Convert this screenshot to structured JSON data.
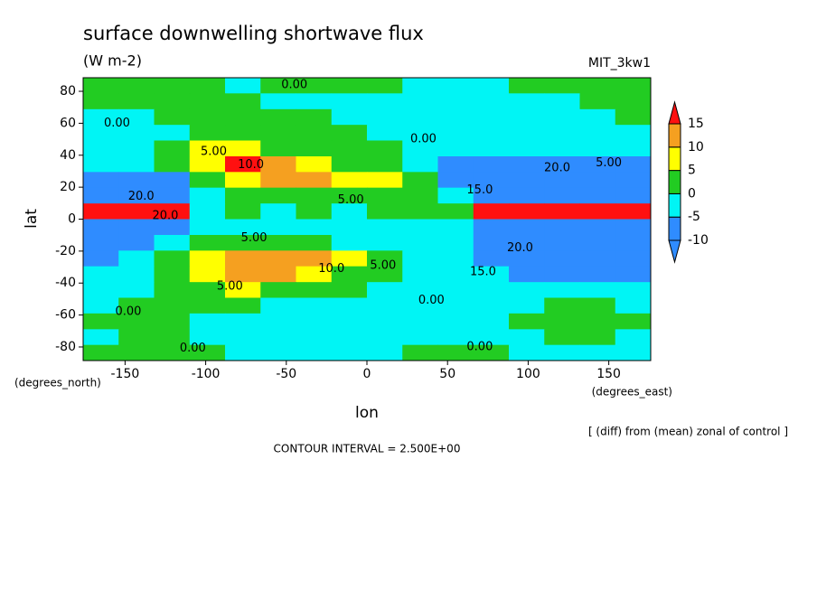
{
  "chart_data": {
    "type": "contourf",
    "title": "surface downwelling shortwave flux",
    "subtitle": "(W m-2)",
    "run_label": "MIT_3kw1",
    "x_label": "lon",
    "y_label": "lat",
    "x_units": "(degrees_east)",
    "y_units": "(degrees_north)",
    "note": "[ (diff) from (mean) zonal of control ]",
    "contour_note": "CONTOUR INTERVAL = 2.500E+00",
    "xlim": [
      -176,
      176
    ],
    "ylim": [
      -88.5,
      88.5
    ],
    "xticks": [
      -150,
      -100,
      -50,
      0,
      50,
      100,
      150
    ],
    "yticks": [
      -80,
      -60,
      -40,
      -20,
      0,
      20,
      40,
      60,
      80
    ],
    "x": [
      -165,
      -143,
      -121,
      -99,
      -77,
      -55,
      -33,
      -11,
      11,
      33,
      55,
      77,
      99,
      121,
      143,
      165
    ],
    "y": [
      83.6,
      73.8,
      63.9,
      54.1,
      44.3,
      34.4,
      24.6,
      14.8,
      4.9,
      -4.9,
      -14.8,
      -24.6,
      -34.4,
      -44.3,
      -54.1,
      -63.9,
      -73.8,
      -83.6
    ],
    "values": [
      [
        2,
        2,
        2,
        2,
        -2,
        2,
        2,
        2,
        2,
        -2,
        -2,
        -2,
        2,
        2,
        2,
        2
      ],
      [
        2,
        2,
        2,
        2,
        2,
        -2,
        -2,
        -2,
        -2,
        -2,
        -2,
        -2,
        -2,
        -2,
        2,
        2
      ],
      [
        -2,
        -2,
        2,
        2,
        2,
        2,
        2,
        -2,
        -2,
        -2,
        -2,
        -2,
        -2,
        -2,
        -2,
        2
      ],
      [
        -2,
        -2,
        -2,
        2,
        2,
        2,
        2,
        2,
        -2,
        -2,
        -2,
        -2,
        -2,
        -2,
        -2,
        -2
      ],
      [
        -2,
        -2,
        2,
        7,
        7,
        2,
        2,
        2,
        2,
        -2,
        -2,
        -2,
        -2,
        -2,
        -2,
        -2
      ],
      [
        -2,
        -2,
        2,
        7,
        20,
        12,
        7,
        2,
        2,
        -2,
        -7,
        -7,
        -7,
        -7,
        -7,
        -7
      ],
      [
        -7,
        -7,
        -7,
        2,
        7,
        12,
        12,
        7,
        7,
        2,
        -7,
        -7,
        -7,
        -7,
        -7,
        -7
      ],
      [
        -7,
        -7,
        -7,
        -2,
        2,
        2,
        2,
        2,
        2,
        2,
        -2,
        -7,
        -7,
        -7,
        -7,
        -7
      ],
      [
        20,
        20,
        20,
        -2,
        2,
        -2,
        2,
        -2,
        2,
        2,
        2,
        20,
        20,
        20,
        20,
        20
      ],
      [
        -7,
        -7,
        -7,
        -2,
        -2,
        -2,
        -2,
        -2,
        -2,
        -2,
        -2,
        -7,
        -7,
        -7,
        -7,
        -7
      ],
      [
        -7,
        -7,
        -2,
        2,
        2,
        2,
        2,
        -2,
        -2,
        -2,
        -2,
        -7,
        -7,
        -7,
        -7,
        -7
      ],
      [
        -7,
        -2,
        2,
        7,
        12,
        12,
        12,
        7,
        2,
        -2,
        -2,
        -7,
        -7,
        -7,
        -7,
        -7
      ],
      [
        -2,
        -2,
        2,
        7,
        12,
        12,
        7,
        2,
        2,
        -2,
        -2,
        -2,
        -7,
        -7,
        -7,
        -7
      ],
      [
        -2,
        -2,
        2,
        2,
        7,
        2,
        2,
        2,
        -2,
        -2,
        -2,
        -2,
        -2,
        -2,
        -2,
        -2
      ],
      [
        -2,
        2,
        2,
        2,
        2,
        -2,
        -2,
        -2,
        -2,
        -2,
        -2,
        -2,
        -2,
        2,
        2,
        -2
      ],
      [
        2,
        2,
        2,
        -2,
        -2,
        -2,
        -2,
        -2,
        -2,
        -2,
        -2,
        -2,
        2,
        2,
        2,
        2
      ],
      [
        -2,
        2,
        2,
        -2,
        -2,
        -2,
        -2,
        -2,
        -2,
        -2,
        -2,
        -2,
        -2,
        2,
        2,
        -2
      ],
      [
        2,
        2,
        2,
        2,
        -2,
        -2,
        -2,
        -2,
        -2,
        2,
        2,
        2,
        -2,
        -2,
        -2,
        -2
      ]
    ],
    "levels": [
      -10,
      -5,
      0,
      5,
      10,
      15
    ],
    "colors": [
      "#2f8cff",
      "#2f8cff",
      "#00f5f5",
      "#22cc22",
      "#ffff00",
      "#f5a020",
      "#ff1010"
    ],
    "annotations": [
      {
        "text": "0.00",
        "x": -45,
        "y": 84
      },
      {
        "text": "0.00",
        "x": -155,
        "y": 60
      },
      {
        "text": "5.00",
        "x": -95,
        "y": 42
      },
      {
        "text": "10.0",
        "x": -72,
        "y": 34
      },
      {
        "text": "0.00",
        "x": 35,
        "y": 50
      },
      {
        "text": "20.0",
        "x": 118,
        "y": 32
      },
      {
        "text": "5.00",
        "x": 150,
        "y": 35
      },
      {
        "text": "20.0",
        "x": -140,
        "y": 14
      },
      {
        "text": "15.0",
        "x": 70,
        "y": 18
      },
      {
        "text": "5.00",
        "x": -10,
        "y": 12
      },
      {
        "text": "20.0",
        "x": -125,
        "y": 2
      },
      {
        "text": "5.00",
        "x": -70,
        "y": -12
      },
      {
        "text": "20.0",
        "x": 95,
        "y": -18
      },
      {
        "text": "10.0",
        "x": -22,
        "y": -31
      },
      {
        "text": "5.00",
        "x": 10,
        "y": -29
      },
      {
        "text": "5.00",
        "x": -85,
        "y": -42
      },
      {
        "text": "15.0",
        "x": 72,
        "y": -33
      },
      {
        "text": "0.00",
        "x": 40,
        "y": -51
      },
      {
        "text": "0.00",
        "x": -148,
        "y": -58
      },
      {
        "text": "0.00",
        "x": -108,
        "y": -81
      },
      {
        "text": "0.00",
        "x": 70,
        "y": -80
      }
    ]
  }
}
